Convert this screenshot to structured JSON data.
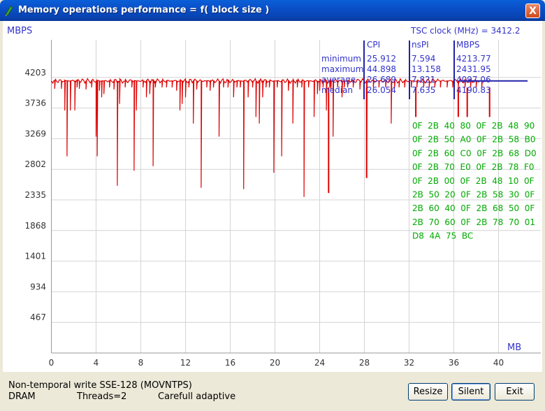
{
  "window": {
    "title": "Memory operations performance = f( block size )",
    "close_symbol": "X"
  },
  "status": {
    "line1": "Non-temporal write SSE-128 (MOVNTPS)",
    "memory": "DRAM",
    "threads": "Threads=2",
    "mode": "Carefull adaptive"
  },
  "buttons": {
    "resize": "Resize",
    "silent": "Silent",
    "exit": "Exit"
  },
  "chart_data": {
    "type": "line",
    "ylabel": "MBPS",
    "xlabel": "MB",
    "xlim": [
      0,
      44
    ],
    "ylim": [
      0,
      4670
    ],
    "x_ticks": [
      0,
      4,
      8,
      12,
      16,
      20,
      24,
      28,
      32,
      36,
      40
    ],
    "y_ticks": [
      467,
      934,
      1401,
      1868,
      2335,
      2802,
      3269,
      3736,
      4203
    ],
    "grid": true,
    "series_color": "#dd0000",
    "baseline": 4150,
    "dips": [
      [
        0.3,
        4030
      ],
      [
        0.9,
        4030
      ],
      [
        1.2,
        3700
      ],
      [
        1.4,
        3000
      ],
      [
        1.7,
        3700
      ],
      [
        2.1,
        3700
      ],
      [
        2.3,
        4050
      ],
      [
        2.5,
        4030
      ],
      [
        3.1,
        4020
      ],
      [
        3.6,
        4050
      ],
      [
        4.0,
        3300
      ],
      [
        4.1,
        3000
      ],
      [
        4.3,
        4000
      ],
      [
        4.5,
        3900
      ],
      [
        4.7,
        3950
      ],
      [
        5.2,
        4050
      ],
      [
        5.6,
        4020
      ],
      [
        5.9,
        2550
      ],
      [
        6.1,
        3800
      ],
      [
        6.6,
        4050
      ],
      [
        7.2,
        4050
      ],
      [
        7.4,
        2780
      ],
      [
        7.6,
        3700
      ],
      [
        8.2,
        4050
      ],
      [
        8.5,
        3900
      ],
      [
        8.8,
        3950
      ],
      [
        9.1,
        2850
      ],
      [
        9.3,
        4050
      ],
      [
        9.9,
        4050
      ],
      [
        10.3,
        4050
      ],
      [
        10.8,
        4050
      ],
      [
        11.2,
        4000
      ],
      [
        11.5,
        3700
      ],
      [
        11.7,
        3800
      ],
      [
        12.0,
        3900
      ],
      [
        12.3,
        4050
      ],
      [
        12.7,
        3500
      ],
      [
        13.0,
        4020
      ],
      [
        13.4,
        2520
      ],
      [
        13.9,
        4050
      ],
      [
        14.2,
        4000
      ],
      [
        14.5,
        4050
      ],
      [
        15.0,
        3300
      ],
      [
        15.4,
        4050
      ],
      [
        15.8,
        4050
      ],
      [
        16.3,
        3900
      ],
      [
        16.6,
        4050
      ],
      [
        16.9,
        4050
      ],
      [
        17.2,
        2500
      ],
      [
        17.6,
        3900
      ],
      [
        18.0,
        4050
      ],
      [
        18.3,
        3600
      ],
      [
        18.6,
        3500
      ],
      [
        18.9,
        3900
      ],
      [
        19.2,
        4050
      ],
      [
        19.5,
        4050
      ],
      [
        19.9,
        2750
      ],
      [
        20.2,
        4050
      ],
      [
        20.6,
        3000
      ],
      [
        21.2,
        4000
      ],
      [
        21.6,
        3500
      ],
      [
        22.0,
        4050
      ],
      [
        22.4,
        4050
      ],
      [
        22.6,
        2380
      ],
      [
        23.0,
        4050
      ],
      [
        23.5,
        3600
      ],
      [
        23.8,
        3950
      ],
      [
        24.0,
        4000
      ],
      [
        24.3,
        4050
      ],
      [
        24.6,
        3700
      ],
      [
        24.9,
        4050
      ],
      [
        25.0,
        4020
      ],
      [
        25.2,
        3300
      ],
      [
        25.6,
        4050
      ],
      [
        26.0,
        3900
      ],
      [
        26.2,
        4050
      ],
      [
        26.5,
        4050
      ],
      [
        27.0,
        4050
      ],
      [
        27.6,
        4020
      ],
      [
        28.2,
        2670
      ],
      [
        28.8,
        4050
      ],
      [
        29.3,
        4050
      ],
      [
        29.9,
        4050
      ],
      [
        30.4,
        3500
      ],
      [
        30.7,
        4050
      ],
      [
        31.1,
        4050
      ],
      [
        31.6,
        4050
      ],
      [
        32.2,
        4050
      ],
      [
        32.7,
        4050
      ],
      [
        33.3,
        4050
      ],
      [
        33.8,
        4050
      ],
      [
        34.3,
        4050
      ],
      [
        34.8,
        4050
      ],
      [
        35.4,
        4050
      ],
      [
        35.9,
        4050
      ],
      [
        36.4,
        4050
      ],
      [
        37.0,
        4050
      ],
      [
        37.5,
        4050
      ],
      [
        38.0,
        4050
      ],
      [
        38.5,
        4050
      ],
      [
        39.0,
        4050
      ]
    ],
    "sparse_points": [
      [
        24.8,
        2440
      ],
      [
        28.2,
        2670
      ],
      [
        32.6,
        3600
      ],
      [
        36.4,
        3600
      ],
      [
        37.2,
        3600
      ],
      [
        39.2,
        3600
      ]
    ],
    "stats": {
      "tsc_label": "TSC clock (MHz)  = 3412.2",
      "columns": [
        "CPI",
        "nsPI",
        "MBPS"
      ],
      "rows": [
        {
          "label": "minimum",
          "cpi": "25.912",
          "nspi": "7.594",
          "mbps": "4213.77"
        },
        {
          "label": "maximum",
          "cpi": "44.898",
          "nspi": "13.158",
          "mbps": "2431.95"
        },
        {
          "label": "average",
          "cpi": "26.689",
          "nspi": "7.821",
          "mbps": "4097.06"
        },
        {
          "label": "median",
          "cpi": "26.054",
          "nspi": "7.635",
          "mbps": "4190.83"
        }
      ]
    },
    "hex_dump": [
      "0F  2B  40  80  0F  2B  48  90",
      "0F  2B  50  A0  0F  2B  58  B0",
      "0F  2B  60  C0  0F  2B  68  D0",
      "0F  2B  70  E0  0F  2B  78  F0",
      "0F  2B  00  0F  2B  48  10  0F",
      "2B  50  20  0F  2B  58  30  0F",
      "2B  60  40  0F  2B  68  50  0F",
      "2B  70  60  0F  2B  78  70  01",
      "D8  4A  75  BC"
    ],
    "colors": {
      "label": "#3333cc",
      "grid": "#d4d4d4",
      "hex": "#00aa00",
      "series": "#dd0000"
    }
  }
}
